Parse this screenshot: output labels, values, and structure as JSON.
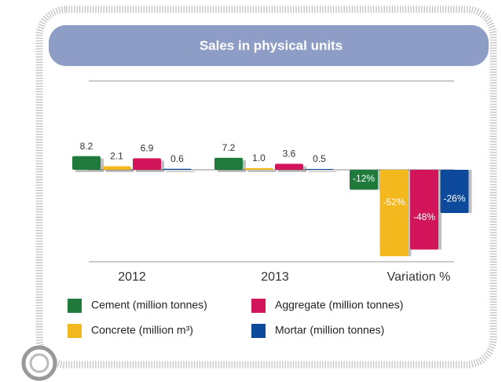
{
  "chart_data": {
    "type": "bar",
    "title": "Sales in physical units",
    "categories": [
      "2012",
      "2013",
      "Variation %"
    ],
    "series": [
      {
        "name": "Cement (million tonnes)",
        "color": "#1f7a3c",
        "values": [
          8.2,
          7.2,
          -12
        ],
        "value_labels": [
          "8.2",
          "7.2",
          "-12%"
        ]
      },
      {
        "name": "Concrete (million m³)",
        "color": "#f4b81f",
        "values": [
          2.1,
          1.0,
          -52
        ],
        "value_labels": [
          "2.1",
          "1.0",
          "-52%"
        ]
      },
      {
        "name": "Aggregate (million tonnes)",
        "color": "#d2145a",
        "values": [
          6.9,
          3.6,
          -48
        ],
        "value_labels": [
          "6.9",
          "3.6",
          "-48%"
        ]
      },
      {
        "name": "Mortar (million tonnes)",
        "color": "#0d4a9c",
        "values": [
          0.6,
          0.5,
          -26
        ],
        "value_labels": [
          "0.6",
          "0.5",
          "-26%"
        ]
      }
    ]
  }
}
